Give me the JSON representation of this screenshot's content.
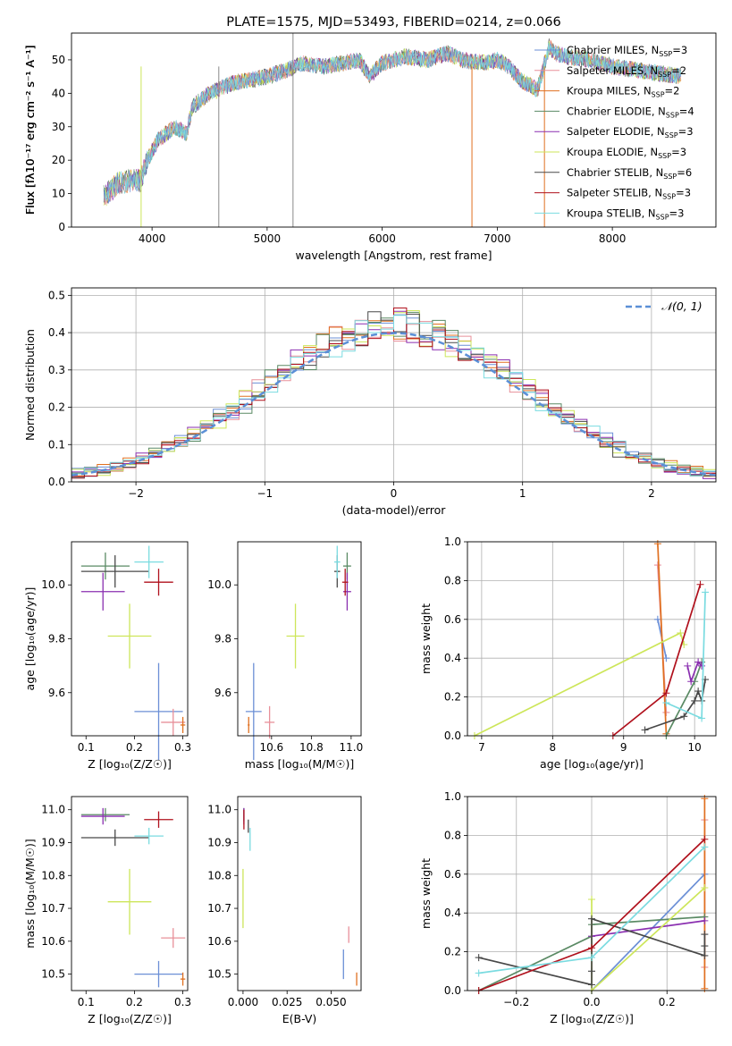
{
  "colors": {
    "Chabrier MILES": "#6b8fd6",
    "Salpeter MILES": "#e8909a",
    "Kroupa MILES": "#e07020",
    "Chabrier ELODIE": "#5a8a64",
    "Salpeter ELODIE": "#8a2fb0",
    "Kroupa ELODIE": "#cde65a",
    "Chabrier STELIB": "#484848",
    "Salpeter STELIB": "#b0101c",
    "Kroupa STELIB": "#7adbe0",
    "normal": "#5b8fd6"
  },
  "chart_data": [
    {
      "type": "line",
      "title": "PLATE=1575, MJD=53493, FIBERID=0214, z=0.066",
      "xlabel": "wavelength [Angstrom, rest frame]",
      "ylabel": "Flux [fλ10⁻¹⁷ erg cm⁻² s⁻¹ A⁻¹]",
      "xlim": [
        3300,
        8900
      ],
      "ylim": [
        0,
        58
      ],
      "xticks": [
        "4000",
        "5000",
        "6000",
        "7000",
        "8000"
      ],
      "yticks": [
        "0",
        "10",
        "20",
        "30",
        "40",
        "50"
      ],
      "continuum_x": [
        3580,
        3700,
        3820,
        3900,
        3960,
        4050,
        4200,
        4300,
        4350,
        4500,
        4700,
        4860,
        5000,
        5180,
        5300,
        5500,
        5800,
        5890,
        6000,
        6200,
        6400,
        6563,
        6700,
        6900,
        7000,
        7100,
        7200,
        7350,
        7450,
        7500,
        7600,
        7800,
        8000,
        8200,
        8400,
        8600
      ],
      "continuum_y": [
        9,
        13,
        14,
        14,
        20,
        26,
        30,
        28,
        36,
        40,
        43,
        44,
        45,
        47,
        49,
        48,
        50,
        45,
        49,
        51,
        50,
        52,
        50,
        49,
        50,
        48,
        44,
        41,
        54,
        52,
        51,
        50,
        48,
        47,
        46,
        45
      ],
      "legend": [
        "Chabrier MILES, N_SSP=3",
        "Salpeter MILES, N_SSP=2",
        "Kroupa MILES, N_SSP=2",
        "Chabrier ELODIE, N_SSP=4",
        "Salpeter ELODIE, N_SSP=3",
        "Kroupa ELODIE, N_SSP=3",
        "Chabrier STELIB, N_SSP=6",
        "Salpeter STELIB, N_SSP=3",
        "Kroupa STELIB, N_SSP=3"
      ],
      "legend_placement": "right",
      "grid": false
    },
    {
      "type": "histogram",
      "xlabel": "(data-model)/error",
      "ylabel": "Normed distribution",
      "xlim": [
        -2.5,
        2.5
      ],
      "ylim": [
        0,
        0.52
      ],
      "xticks": [
        "−2",
        "−1",
        "0",
        "1",
        "2"
      ],
      "yticks": [
        "0.0",
        "0.1",
        "0.2",
        "0.3",
        "0.4",
        "0.5"
      ],
      "legend": [
        "𝒩(0, 1)"
      ],
      "legend_placement": "top-right",
      "grid": true
    },
    {
      "type": "scatter",
      "xlabel": "Z [log₁₀(Z/Z☉)]",
      "ylabel": "age  [log₁₀(age/yr)]",
      "xlim": [
        0.07,
        0.31
      ],
      "ylim": [
        9.44,
        10.16
      ],
      "xticks": [
        "0.1",
        "0.2",
        "0.3"
      ],
      "yticks": [
        "9.6",
        "9.8",
        "10.0"
      ],
      "points": [
        {
          "s": "Chabrier MILES",
          "x": 0.25,
          "y": 9.53,
          "ex": 0.05,
          "ey": 0.18
        },
        {
          "s": "Salpeter MILES",
          "x": 0.28,
          "y": 9.49,
          "ex": 0.025,
          "ey": 0.05
        },
        {
          "s": "Kroupa MILES",
          "x": 0.3,
          "y": 9.48,
          "ex": 0.005,
          "ey": 0.03
        },
        {
          "s": "Chabrier ELODIE",
          "x": 0.14,
          "y": 10.07,
          "ex": 0.05,
          "ey": 0.05
        },
        {
          "s": "Salpeter ELODIE",
          "x": 0.135,
          "y": 9.975,
          "ex": 0.045,
          "ey": 0.07
        },
        {
          "s": "Kroupa ELODIE",
          "x": 0.19,
          "y": 9.81,
          "ex": 0.045,
          "ey": 0.12
        },
        {
          "s": "Chabrier STELIB",
          "x": 0.16,
          "y": 10.05,
          "ex": 0.07,
          "ey": 0.06
        },
        {
          "s": "Salpeter STELIB",
          "x": 0.25,
          "y": 10.01,
          "ex": 0.03,
          "ey": 0.05
        },
        {
          "s": "Kroupa STELIB",
          "x": 0.23,
          "y": 10.085,
          "ex": 0.03,
          "ey": 0.06
        }
      ]
    },
    {
      "type": "scatter",
      "xlabel": "mass [log₁₀(M/M☉)]",
      "ylabel": "",
      "xlim": [
        10.43,
        11.05
      ],
      "ylim": [
        9.44,
        10.16
      ],
      "xticks": [
        "10.6",
        "10.8",
        "11.0"
      ],
      "yticks": [
        "9.6",
        "9.8",
        "10.0"
      ],
      "points": [
        {
          "s": "Chabrier MILES",
          "x": 10.51,
          "y": 9.53,
          "ex": 0.04,
          "ey": 0.18
        },
        {
          "s": "Salpeter MILES",
          "x": 10.59,
          "y": 9.49,
          "ex": 0.025,
          "ey": 0.06
        },
        {
          "s": "Kroupa MILES",
          "x": 10.485,
          "y": 9.48,
          "ex": 0.005,
          "ey": 0.03
        },
        {
          "s": "Chabrier ELODIE",
          "x": 10.98,
          "y": 10.07,
          "ex": 0.02,
          "ey": 0.05
        },
        {
          "s": "Salpeter ELODIE",
          "x": 10.98,
          "y": 9.975,
          "ex": 0.02,
          "ey": 0.07
        },
        {
          "s": "Kroupa ELODIE",
          "x": 10.72,
          "y": 9.81,
          "ex": 0.045,
          "ey": 0.12
        },
        {
          "s": "Chabrier STELIB",
          "x": 10.93,
          "y": 10.05,
          "ex": 0.015,
          "ey": 0.06
        },
        {
          "s": "Salpeter STELIB",
          "x": 10.97,
          "y": 10.01,
          "ex": 0.015,
          "ey": 0.05
        },
        {
          "s": "Kroupa STELIB",
          "x": 10.93,
          "y": 10.085,
          "ex": 0.015,
          "ey": 0.06
        }
      ]
    },
    {
      "type": "line",
      "xlabel": "age  [log₁₀(age/yr)]",
      "ylabel": "mass weight",
      "xlim": [
        6.8,
        10.3
      ],
      "ylim": [
        0,
        1
      ],
      "xticks": [
        "7",
        "8",
        "9",
        "10"
      ],
      "yticks": [
        "0.0",
        "0.2",
        "0.4",
        "0.6",
        "0.8",
        "1.0"
      ],
      "grid": true,
      "series": [
        {
          "s": "Chabrier MILES",
          "x": [
            9.48,
            9.6
          ],
          "y": [
            0.6,
            0.4
          ]
        },
        {
          "s": "Salpeter MILES",
          "x": [
            9.48,
            9.6
          ],
          "y": [
            0.88,
            0.12
          ]
        },
        {
          "s": "Kroupa MILES",
          "x": [
            9.48,
            9.6
          ],
          "y": [
            0.99,
            0.01
          ]
        },
        {
          "s": "Chabrier ELODIE",
          "x": [
            9.6,
            10.0,
            10.1
          ],
          "y": [
            0.0,
            0.28,
            0.38
          ]
        },
        {
          "s": "Salpeter ELODIE",
          "x": [
            9.9,
            9.95,
            10.05,
            10.1
          ],
          "y": [
            0.36,
            0.28,
            0.38,
            0.36
          ]
        },
        {
          "s": "Kroupa ELODIE",
          "x": [
            6.9,
            9.8,
            9.85
          ],
          "y": [
            0.0,
            0.53,
            0.47
          ]
        },
        {
          "s": "Chabrier STELIB",
          "x": [
            9.3,
            9.85,
            10.0,
            10.05,
            10.1,
            10.15
          ],
          "y": [
            0.03,
            0.1,
            0.18,
            0.23,
            0.18,
            0.29
          ]
        },
        {
          "s": "Salpeter STELIB",
          "x": [
            8.85,
            9.6,
            10.08
          ],
          "y": [
            0.0,
            0.22,
            0.78
          ]
        },
        {
          "s": "Kroupa STELIB",
          "x": [
            9.6,
            10.1,
            10.15
          ],
          "y": [
            0.17,
            0.09,
            0.74
          ]
        }
      ]
    },
    {
      "type": "scatter",
      "xlabel": "Z [log₁₀(Z/Z☉)]",
      "ylabel": "mass [log₁₀(M/M☉)]",
      "xlim": [
        0.07,
        0.31
      ],
      "ylim": [
        10.45,
        11.04
      ],
      "xticks": [
        "0.1",
        "0.2",
        "0.3"
      ],
      "yticks": [
        "10.5",
        "10.6",
        "10.7",
        "10.8",
        "10.9",
        "11.0"
      ],
      "points": [
        {
          "s": "Chabrier MILES",
          "x": 0.25,
          "y": 10.5,
          "ex": 0.05,
          "ey": 0.04
        },
        {
          "s": "Salpeter MILES",
          "x": 0.28,
          "y": 10.61,
          "ex": 0.025,
          "ey": 0.03
        },
        {
          "s": "Kroupa MILES",
          "x": 0.3,
          "y": 10.485,
          "ex": 0.005,
          "ey": 0.02
        },
        {
          "s": "Chabrier ELODIE",
          "x": 0.14,
          "y": 10.985,
          "ex": 0.05,
          "ey": 0.02
        },
        {
          "s": "Salpeter ELODIE",
          "x": 0.135,
          "y": 10.98,
          "ex": 0.045,
          "ey": 0.025
        },
        {
          "s": "Kroupa ELODIE",
          "x": 0.19,
          "y": 10.72,
          "ex": 0.045,
          "ey": 0.1
        },
        {
          "s": "Chabrier STELIB",
          "x": 0.16,
          "y": 10.915,
          "ex": 0.07,
          "ey": 0.025
        },
        {
          "s": "Salpeter STELIB",
          "x": 0.25,
          "y": 10.97,
          "ex": 0.03,
          "ey": 0.025
        },
        {
          "s": "Kroupa STELIB",
          "x": 0.23,
          "y": 10.92,
          "ex": 0.03,
          "ey": 0.025
        }
      ]
    },
    {
      "type": "scatter",
      "xlabel": "E(B-V)",
      "ylabel": "",
      "xlim": [
        -0.003,
        0.067
      ],
      "ylim": [
        10.45,
        11.04
      ],
      "xticks": [
        "0.000",
        "0.025",
        "0.050"
      ],
      "yticks": [
        "10.5",
        "10.6",
        "10.7",
        "10.8",
        "10.9",
        "11.0"
      ],
      "points": [
        {
          "s": "Chabrier MILES",
          "x": 0.057,
          "y": 10.53,
          "ex": 0,
          "ey": 0.045
        },
        {
          "s": "Salpeter MILES",
          "x": 0.06,
          "y": 10.62,
          "ex": 0,
          "ey": 0.025
        },
        {
          "s": "Kroupa MILES",
          "x": 0.0645,
          "y": 10.485,
          "ex": 0,
          "ey": 0.02
        },
        {
          "s": "Chabrier ELODIE",
          "x": 0.0005,
          "y": 10.985,
          "ex": 0,
          "ey": 0.02
        },
        {
          "s": "Salpeter ELODIE",
          "x": 0.0005,
          "y": 10.98,
          "ex": 0,
          "ey": 0.025
        },
        {
          "s": "Kroupa ELODIE",
          "x": 0.0,
          "y": 10.73,
          "ex": 0,
          "ey": 0.09
        },
        {
          "s": "Chabrier STELIB",
          "x": 0.003,
          "y": 10.95,
          "ex": 0,
          "ey": 0.02
        },
        {
          "s": "Salpeter STELIB",
          "x": 0.0005,
          "y": 10.97,
          "ex": 0,
          "ey": 0.03
        },
        {
          "s": "Kroupa STELIB",
          "x": 0.004,
          "y": 10.91,
          "ex": 0,
          "ey": 0.035
        }
      ]
    },
    {
      "type": "line",
      "xlabel": "Z [log₁₀(Z/Z☉)]",
      "ylabel": "mass weight",
      "xlim": [
        -0.33,
        0.33
      ],
      "ylim": [
        0,
        1
      ],
      "xticks": [
        "−0.2",
        "0.0",
        "0.2"
      ],
      "yticks": [
        "0.0",
        "0.2",
        "0.4",
        "0.6",
        "0.8",
        "1.0"
      ],
      "grid": true,
      "series": [
        {
          "s": "Chabrier MILES",
          "x": [
            0.0,
            0.3
          ],
          "y": [
            0.0,
            0.6
          ]
        },
        {
          "s": "Salpeter MILES",
          "x": [
            0.3,
            0.3
          ],
          "y": [
            0.12,
            0.88
          ]
        },
        {
          "s": "Kroupa MILES",
          "x": [
            0.3,
            0.3
          ],
          "y": [
            0.01,
            0.99
          ]
        },
        {
          "s": "Chabrier ELODIE",
          "x": [
            -0.3,
            0.0,
            0.0,
            0.3
          ],
          "y": [
            0.0,
            0.28,
            0.34,
            0.38
          ]
        },
        {
          "s": "Salpeter ELODIE",
          "x": [
            0.0,
            0.3
          ],
          "y": [
            0.28,
            0.36
          ]
        },
        {
          "s": "Kroupa ELODIE",
          "x": [
            0.0,
            0.0,
            0.3
          ],
          "y": [
            0.47,
            0.0,
            0.53
          ]
        },
        {
          "s": "Chabrier STELIB",
          "x": [
            -0.3,
            0.0,
            0.0,
            0.0,
            0.3,
            0.3,
            0.3
          ],
          "y": [
            0.17,
            0.03,
            0.1,
            0.37,
            0.18,
            0.23,
            0.29
          ]
        },
        {
          "s": "Salpeter STELIB",
          "x": [
            -0.3,
            0.0,
            0.3
          ],
          "y": [
            0.0,
            0.22,
            0.78
          ]
        },
        {
          "s": "Kroupa STELIB",
          "x": [
            -0.3,
            0.0,
            0.3
          ],
          "y": [
            0.09,
            0.17,
            0.74
          ]
        }
      ]
    }
  ]
}
